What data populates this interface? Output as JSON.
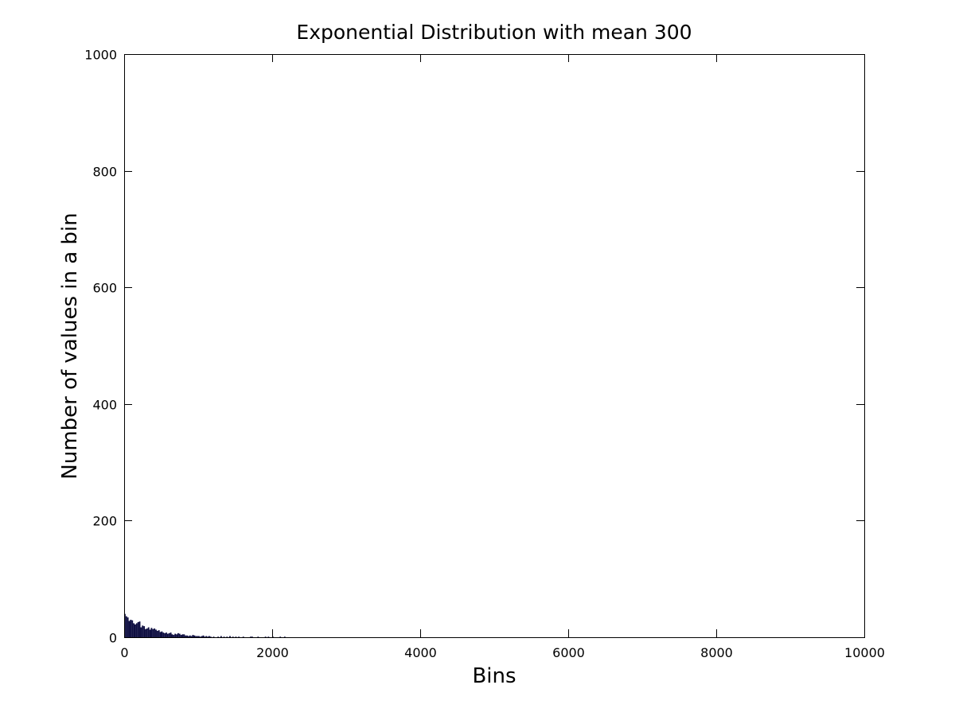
{
  "chart_data": {
    "type": "bar",
    "title": "Exponential Distribution with mean 300",
    "xlabel": "Bins",
    "ylabel": "Number of values in a bin",
    "xlim": [
      0,
      10000
    ],
    "ylim": [
      0,
      1000
    ],
    "x_ticks": [
      "0",
      "2000",
      "4000",
      "6000",
      "8000",
      "10000"
    ],
    "y_ticks": [
      "0",
      "200",
      "400",
      "600",
      "800",
      "1000"
    ],
    "bar_color": "#0d0d40",
    "bin_width": 20,
    "grid": false,
    "bins": [
      {
        "x": 0,
        "y": 40
      },
      {
        "x": 20,
        "y": 36
      },
      {
        "x": 40,
        "y": 34
      },
      {
        "x": 60,
        "y": 28
      },
      {
        "x": 80,
        "y": 30
      },
      {
        "x": 100,
        "y": 29
      },
      {
        "x": 120,
        "y": 24
      },
      {
        "x": 140,
        "y": 22
      },
      {
        "x": 160,
        "y": 24
      },
      {
        "x": 180,
        "y": 26
      },
      {
        "x": 200,
        "y": 27
      },
      {
        "x": 220,
        "y": 17
      },
      {
        "x": 240,
        "y": 20
      },
      {
        "x": 260,
        "y": 19
      },
      {
        "x": 280,
        "y": 14
      },
      {
        "x": 300,
        "y": 15
      },
      {
        "x": 320,
        "y": 17
      },
      {
        "x": 340,
        "y": 13
      },
      {
        "x": 360,
        "y": 16
      },
      {
        "x": 380,
        "y": 14
      },
      {
        "x": 400,
        "y": 15
      },
      {
        "x": 420,
        "y": 13
      },
      {
        "x": 440,
        "y": 11
      },
      {
        "x": 460,
        "y": 12
      },
      {
        "x": 480,
        "y": 9
      },
      {
        "x": 500,
        "y": 10
      },
      {
        "x": 520,
        "y": 8
      },
      {
        "x": 540,
        "y": 7
      },
      {
        "x": 560,
        "y": 8
      },
      {
        "x": 580,
        "y": 6
      },
      {
        "x": 600,
        "y": 7
      },
      {
        "x": 620,
        "y": 8
      },
      {
        "x": 640,
        "y": 5
      },
      {
        "x": 660,
        "y": 4
      },
      {
        "x": 680,
        "y": 6
      },
      {
        "x": 700,
        "y": 5
      },
      {
        "x": 720,
        "y": 7
      },
      {
        "x": 740,
        "y": 6
      },
      {
        "x": 760,
        "y": 4
      },
      {
        "x": 780,
        "y": 5
      },
      {
        "x": 800,
        "y": 5
      },
      {
        "x": 820,
        "y": 3
      },
      {
        "x": 840,
        "y": 3
      },
      {
        "x": 860,
        "y": 2
      },
      {
        "x": 880,
        "y": 3
      },
      {
        "x": 900,
        "y": 2
      },
      {
        "x": 920,
        "y": 4
      },
      {
        "x": 940,
        "y": 3
      },
      {
        "x": 960,
        "y": 2
      },
      {
        "x": 980,
        "y": 2
      },
      {
        "x": 1000,
        "y": 2
      },
      {
        "x": 1020,
        "y": 1
      },
      {
        "x": 1040,
        "y": 2
      },
      {
        "x": 1060,
        "y": 3
      },
      {
        "x": 1080,
        "y": 1
      },
      {
        "x": 1100,
        "y": 2
      },
      {
        "x": 1120,
        "y": 1
      },
      {
        "x": 1140,
        "y": 2
      },
      {
        "x": 1160,
        "y": 1
      },
      {
        "x": 1200,
        "y": 1
      },
      {
        "x": 1260,
        "y": 1
      },
      {
        "x": 1300,
        "y": 2
      },
      {
        "x": 1340,
        "y": 1
      },
      {
        "x": 1380,
        "y": 1
      },
      {
        "x": 1420,
        "y": 2
      },
      {
        "x": 1460,
        "y": 1
      },
      {
        "x": 1500,
        "y": 1
      },
      {
        "x": 1540,
        "y": 1
      },
      {
        "x": 1600,
        "y": 1
      },
      {
        "x": 1700,
        "y": 1
      },
      {
        "x": 1720,
        "y": 1
      },
      {
        "x": 1800,
        "y": 1
      },
      {
        "x": 1900,
        "y": 1
      },
      {
        "x": 1940,
        "y": 1
      },
      {
        "x": 2000,
        "y": 1
      },
      {
        "x": 2100,
        "y": 1
      },
      {
        "x": 2160,
        "y": 1
      }
    ]
  }
}
